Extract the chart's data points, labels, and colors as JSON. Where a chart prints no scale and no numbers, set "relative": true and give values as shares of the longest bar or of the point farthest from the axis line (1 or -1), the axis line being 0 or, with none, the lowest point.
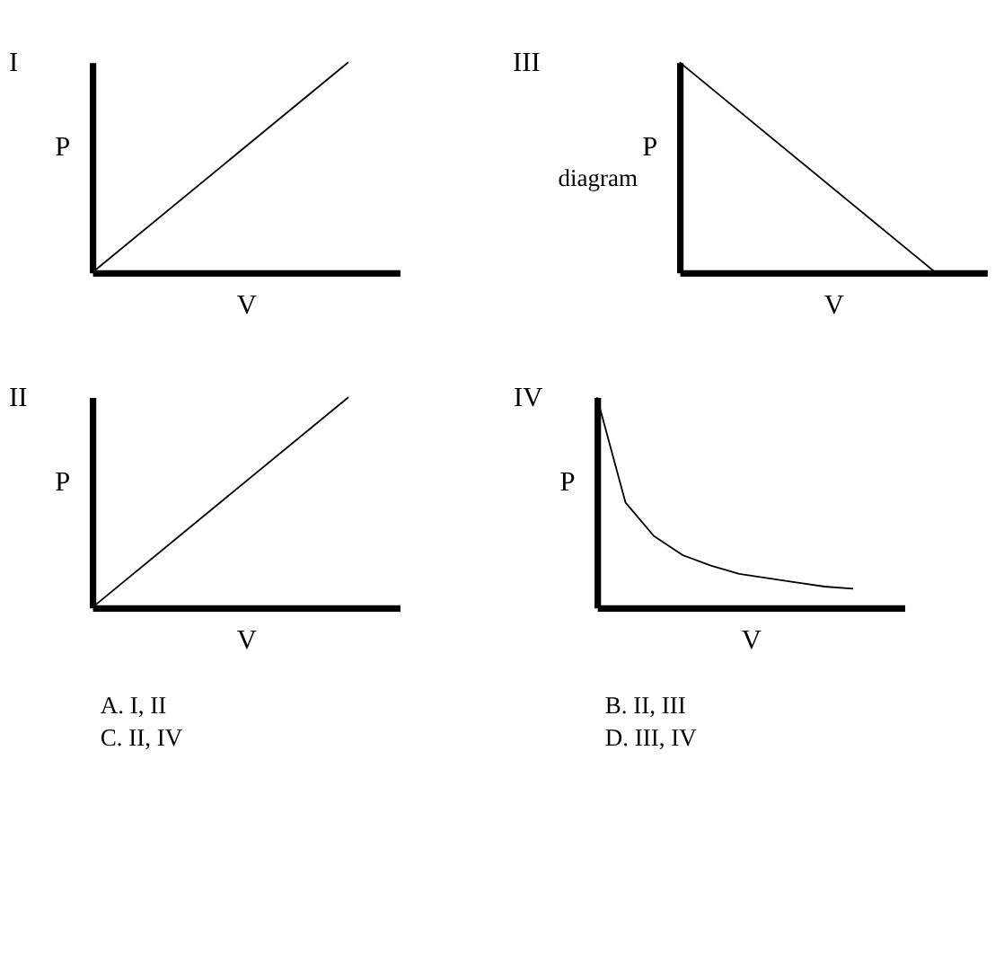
{
  "chart_data": [
    {
      "type": "line",
      "relative": true,
      "title": "I",
      "xlabel": "V",
      "ylabel": "P",
      "categories": [
        null,
        null
      ],
      "values": [
        0,
        1
      ],
      "color": "#000000",
      "tick_labels": false
    },
    {
      "type": "line",
      "relative": true,
      "title": "III",
      "xlabel": "V",
      "ylabel": "P",
      "categories": [
        null,
        null
      ],
      "values": [
        1,
        0
      ],
      "color": "#000000",
      "tick_labels": false,
      "annotations": [
        "diagram"
      ]
    },
    {
      "type": "line",
      "relative": true,
      "title": "II",
      "xlabel": "V",
      "ylabel": "P",
      "categories": [
        null,
        null
      ],
      "values": [
        0,
        1
      ],
      "color": "#000000",
      "tick_labels": false,
      "annotations": [
        "A.   I, II",
        "C.   II, IV"
      ]
    },
    {
      "type": "line",
      "relative": true,
      "title": "IV",
      "xlabel": "V",
      "ylabel": "P",
      "categories": [
        null,
        null,
        null,
        null,
        null,
        null,
        null,
        null,
        null,
        null
      ],
      "values": [
        1,
        0.5,
        0.34,
        0.25,
        0.2,
        0.16,
        0.14,
        0.12,
        0.1,
        0.09
      ],
      "color": "#000000",
      "tick_labels": false,
      "annotations": [
        "B.   II, III",
        "D.   III, IV"
      ]
    }
  ]
}
